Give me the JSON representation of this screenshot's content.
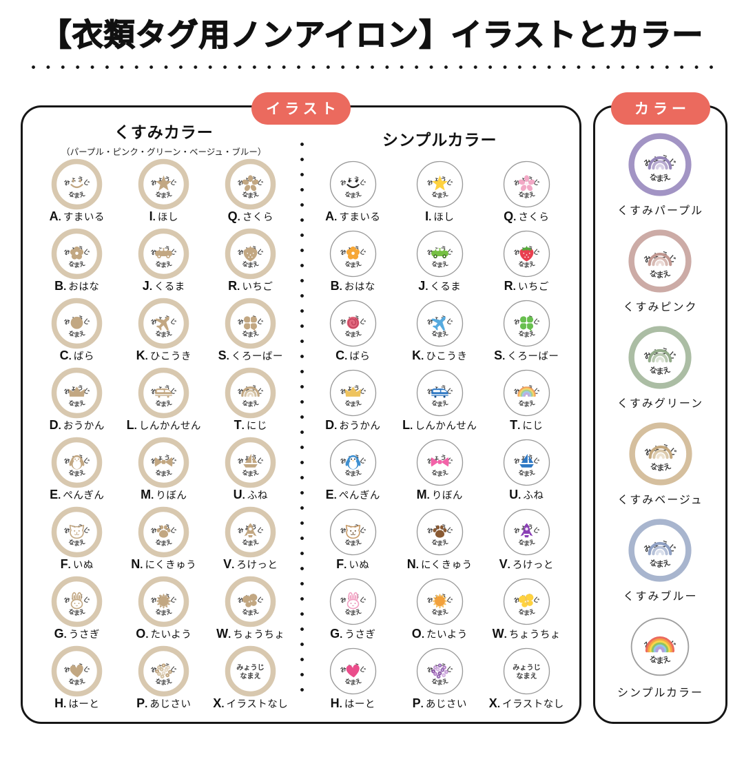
{
  "title": "【衣類タグ用ノンアイロン】イラストとカラー",
  "sticker": {
    "top_text": "みょうじ",
    "bottom_text": "なまえ",
    "no_illust": [
      "みょうじ",
      "なまえ"
    ]
  },
  "illustration_panel": {
    "badge": "イラスト",
    "dusty_heading": "くすみカラー",
    "dusty_subtitle": "（パープル・ピンク・グリーン・ベージュ・ブルー）",
    "simple_heading": "シンプルカラー",
    "items": [
      {
        "letter": "A",
        "label": "すまいる",
        "icon": "smile"
      },
      {
        "letter": "I",
        "label": "ほし",
        "icon": "star"
      },
      {
        "letter": "Q",
        "label": "さくら",
        "icon": "sakura"
      },
      {
        "letter": "B",
        "label": "おはな",
        "icon": "flower"
      },
      {
        "letter": "J",
        "label": "くるま",
        "icon": "car"
      },
      {
        "letter": "R",
        "label": "いちご",
        "icon": "strawberry"
      },
      {
        "letter": "C",
        "label": "ばら",
        "icon": "rose"
      },
      {
        "letter": "K",
        "label": "ひこうき",
        "icon": "airplane"
      },
      {
        "letter": "S",
        "label": "くろーばー",
        "icon": "clover"
      },
      {
        "letter": "D",
        "label": "おうかん",
        "icon": "crown"
      },
      {
        "letter": "L",
        "label": "しんかんせん",
        "icon": "shinkansen"
      },
      {
        "letter": "T",
        "label": "にじ",
        "icon": "rainbow"
      },
      {
        "letter": "E",
        "label": "ぺんぎん",
        "icon": "penguin"
      },
      {
        "letter": "M",
        "label": "りぼん",
        "icon": "ribbon"
      },
      {
        "letter": "U",
        "label": "ふね",
        "icon": "boat"
      },
      {
        "letter": "F",
        "label": "いぬ",
        "icon": "dog"
      },
      {
        "letter": "N",
        "label": "にくきゅう",
        "icon": "paw"
      },
      {
        "letter": "V",
        "label": "ろけっと",
        "icon": "rocket"
      },
      {
        "letter": "G",
        "label": "うさぎ",
        "icon": "rabbit"
      },
      {
        "letter": "O",
        "label": "たいよう",
        "icon": "sun"
      },
      {
        "letter": "W",
        "label": "ちょうちょ",
        "icon": "butterfly"
      },
      {
        "letter": "H",
        "label": "はーと",
        "icon": "heart"
      },
      {
        "letter": "P",
        "label": "あじさい",
        "icon": "hydrangea"
      },
      {
        "letter": "X",
        "label": "イラストなし",
        "icon": "none"
      }
    ]
  },
  "color_panel": {
    "badge": "カラー",
    "options": [
      {
        "label": "くすみパープル",
        "ring": "#a294c4",
        "rainbow": [
          "#9586b8",
          "#b7aacf",
          "#d8d0e6"
        ],
        "thin": false
      },
      {
        "label": "くすみピンク",
        "ring": "#ccaba6",
        "rainbow": [
          "#c09790",
          "#d7bab4",
          "#ebdad6"
        ],
        "thin": false
      },
      {
        "label": "くすみグリーン",
        "ring": "#abbda4",
        "rainbow": [
          "#93ab8a",
          "#b9c9b1",
          "#dbe3d5"
        ],
        "thin": false
      },
      {
        "label": "くすみベージュ",
        "ring": "#d5bf9e",
        "rainbow": [
          "#c4a87e",
          "#dbc9ab",
          "#eee3d0"
        ],
        "thin": false
      },
      {
        "label": "くすみブルー",
        "ring": "#a8b5ce",
        "rainbow": [
          "#8fa0c3",
          "#b6c1d8",
          "#d9dfeb"
        ],
        "thin": false
      },
      {
        "label": "シンプルカラー",
        "ring": "#9f9f9f",
        "rainbow": [
          "#ec6a5e",
          "#f5a145",
          "#f7d64a",
          "#8ec463",
          "#92c5e9",
          "#b29fd9"
        ],
        "thin": true
      }
    ]
  },
  "palette": {
    "badge_bg": "#eb6a5e",
    "badge_text": "#ffffff",
    "panel_border": "#161616",
    "dusty_ring": "#d8c8af",
    "dusty_icon": "#c2a782",
    "simple_ring": "#999999",
    "sticker_text": "#3a3a3a"
  },
  "icon_colors": {
    "dusty": {
      "main": "#c2a782",
      "dark": "#c2a782",
      "light": "#ffffff",
      "accent": "#c2a782",
      "colors": [
        "#c2a782",
        "#d4c2a4",
        "#e6d9c5"
      ]
    },
    "smile": {
      "main": "#2b2b2b"
    },
    "star": {
      "main": "#ffd23f"
    },
    "sakura": {
      "main": "#f2a9c6",
      "light": "#fbe9f1"
    },
    "flower": {
      "main": "#f6a737",
      "light": "#ffffff"
    },
    "car": {
      "main": "#76c043",
      "dark": "#3f6e22",
      "light": "#ffffff"
    },
    "strawberry": {
      "main": "#e8404f",
      "accent": "#55a93c",
      "light": "#ffffff"
    },
    "rose": {
      "main": "#e2697f",
      "dark": "#c2425c"
    },
    "airplane": {
      "main": "#56aadf"
    },
    "clover": {
      "main": "#68bf4f"
    },
    "crown": {
      "main": "#eec35e"
    },
    "shinkansen": {
      "main": "#2e78c4",
      "light": "#ffffff",
      "dark": "#1c4f86"
    },
    "rainbow": {
      "colors": [
        "#f2a25c",
        "#f6d66b",
        "#a6cf8d",
        "#9fc6ea",
        "#c0abdc"
      ]
    },
    "penguin": {
      "main": "#3e8fd0",
      "light": "#ffffff",
      "dark": "#233040",
      "accent": "#f6a737"
    },
    "ribbon": {
      "main": "#f263a8"
    },
    "boat": {
      "main": "#2e78c4"
    },
    "dog": {
      "main": "#c89a66",
      "dark": "#6b4e2e"
    },
    "paw": {
      "main": "#8a5a33"
    },
    "rocket": {
      "main": "#8a3fb5",
      "light": "#ecddf5"
    },
    "rabbit": {
      "main": "#f2a0c2",
      "dark": "#e084ad"
    },
    "sun": {
      "main": "#f2a13c",
      "accent": "#f6c15e"
    },
    "butterfly": {
      "main": "#ffd23f",
      "dark": "#eec35e"
    },
    "heart": {
      "main": "#ea4d8b"
    },
    "hydrangea": {
      "colors": [
        "#9a6fb8",
        "#c49bd6",
        "#b584c9",
        "#8d5aa8",
        "#d4b3e2"
      ]
    }
  }
}
